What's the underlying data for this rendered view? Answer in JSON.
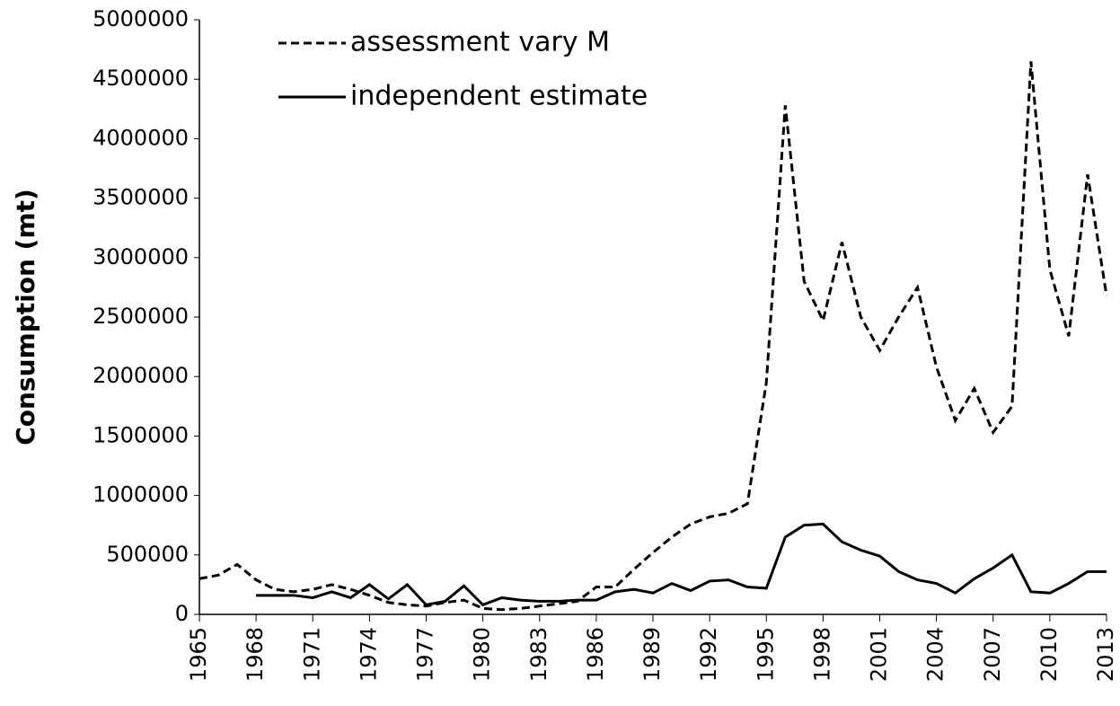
{
  "chart_data": {
    "type": "line",
    "y_label": "Consumption (mt)",
    "x": [
      1965,
      1966,
      1967,
      1968,
      1969,
      1970,
      1971,
      1972,
      1973,
      1974,
      1975,
      1976,
      1977,
      1978,
      1979,
      1980,
      1981,
      1982,
      1983,
      1984,
      1985,
      1986,
      1987,
      1988,
      1989,
      1990,
      1991,
      1992,
      1993,
      1994,
      1995,
      1996,
      1997,
      1998,
      1999,
      2000,
      2001,
      2002,
      2003,
      2004,
      2005,
      2006,
      2007,
      2008,
      2009,
      2010,
      2011,
      2012,
      2013
    ],
    "series": [
      {
        "name": "assessment vary M",
        "color": "#000000",
        "dash": true,
        "values": [
          300000,
          330000,
          420000,
          290000,
          210000,
          190000,
          210000,
          250000,
          210000,
          160000,
          100000,
          80000,
          70000,
          100000,
          120000,
          50000,
          40000,
          50000,
          70000,
          90000,
          110000,
          230000,
          230000,
          380000,
          520000,
          650000,
          760000,
          820000,
          850000,
          930000,
          1950000,
          4280000,
          2800000,
          2470000,
          3130000,
          2500000,
          2220000,
          2500000,
          2750000,
          2080000,
          1630000,
          1900000,
          1530000,
          1750000,
          4650000,
          2900000,
          2340000,
          3700000,
          2680000
        ]
      },
      {
        "name": "independent estimate",
        "color": "#000000",
        "dash": false,
        "values": [
          null,
          null,
          null,
          160000,
          160000,
          160000,
          140000,
          190000,
          140000,
          250000,
          130000,
          250000,
          80000,
          110000,
          240000,
          80000,
          140000,
          120000,
          110000,
          110000,
          120000,
          120000,
          190000,
          210000,
          180000,
          260000,
          200000,
          280000,
          290000,
          230000,
          220000,
          650000,
          750000,
          760000,
          610000,
          540000,
          490000,
          360000,
          290000,
          260000,
          180000,
          300000,
          390000,
          500000,
          190000,
          180000,
          260000,
          360000,
          360000
        ]
      }
    ],
    "xlim": [
      1965,
      2013
    ],
    "xticks": [
      1965,
      1968,
      1971,
      1974,
      1977,
      1980,
      1983,
      1986,
      1989,
      1992,
      1995,
      1998,
      2001,
      2004,
      2007,
      2010,
      2013
    ],
    "ylim": [
      0,
      5000000
    ],
    "yticks": [
      0,
      500000,
      1000000,
      1500000,
      2000000,
      2500000,
      3000000,
      3500000,
      4000000,
      4500000,
      5000000
    ],
    "legend": "top-left"
  }
}
